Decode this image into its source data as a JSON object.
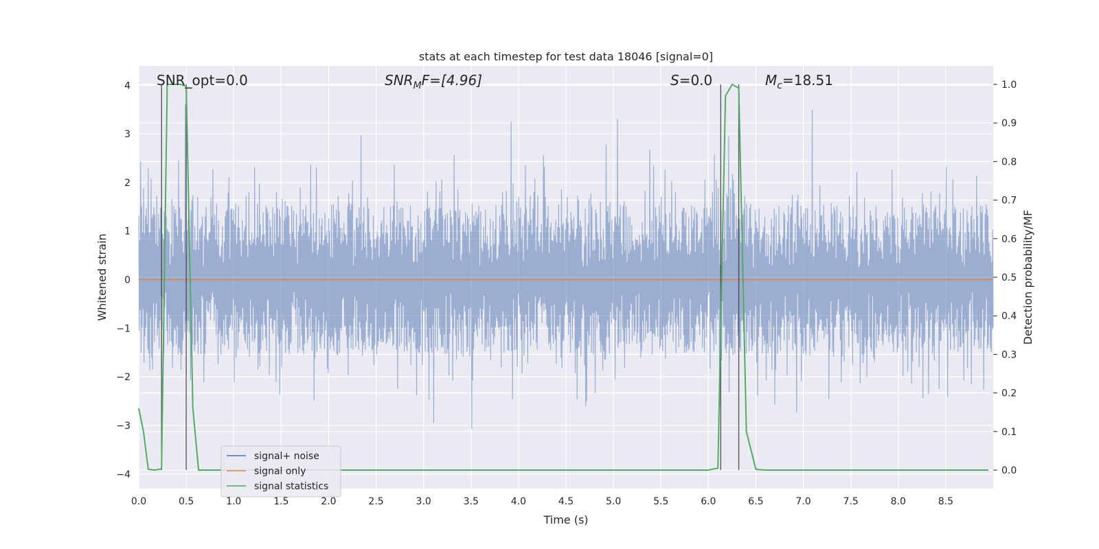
{
  "chart_data": {
    "type": "line",
    "title": "stats at each timestep for test data 18046 [signal=0]",
    "xlabel": "Time (s)",
    "ylabel": "Whitened strain",
    "ylabel_right": "Detection probability/MF",
    "xlim": [
      0.0,
      9.0
    ],
    "ylim": [
      -4.3,
      4.4
    ],
    "ylim_right": [
      -0.048,
      1.048
    ],
    "x_ticks": [
      "0.0",
      "0.5",
      "1.0",
      "1.5",
      "2.0",
      "2.5",
      "3.0",
      "3.5",
      "4.0",
      "4.5",
      "5.0",
      "5.5",
      "6.0",
      "6.5",
      "7.0",
      "7.5",
      "8.0",
      "8.5"
    ],
    "y_ticks": [
      "−4",
      "−3",
      "−2",
      "−1",
      "0",
      "1",
      "2",
      "3",
      "4"
    ],
    "y_ticks_right": [
      "0.0",
      "0.1",
      "0.2",
      "0.3",
      "0.4",
      "0.5",
      "0.6",
      "0.7",
      "0.8",
      "0.9",
      "1.0"
    ],
    "grid": true,
    "background": "#eaeaf2",
    "annotations": {
      "snr_opt": "SNR_opt=0.0",
      "snr_mf_name": "SNR",
      "snr_mf_sub": "M",
      "snr_mf_rest": "F=[4.96]",
      "s_name": "S",
      "s_rest": "=0.0",
      "mc_name": "M",
      "mc_sub": "c",
      "mc_rest": "=18.51"
    },
    "series": [
      {
        "name": "signal+ noise",
        "color": "#4c72b0",
        "opacity": 0.5,
        "t_range": [
          0.0,
          9.0
        ],
        "n_samples": 1800,
        "envelope_upper": 2.1,
        "envelope_lower": -2.1,
        "peak_max": 4.0,
        "peak_min": -3.9
      },
      {
        "name": "signal only",
        "color": "#dd8452",
        "x": [
          0.0,
          9.0
        ],
        "y": [
          0.0,
          0.0
        ]
      },
      {
        "name": "signal statistics",
        "color": "#55a868",
        "axis": "right",
        "x": [
          0.0,
          0.05,
          0.1,
          0.17,
          0.24,
          0.3,
          0.37,
          0.44,
          0.5,
          0.57,
          0.63,
          1.0,
          2.0,
          3.0,
          4.0,
          5.0,
          6.0,
          6.1,
          6.18,
          6.25,
          6.32,
          6.4,
          6.5,
          6.6,
          7.0,
          8.0,
          8.95
        ],
        "y": [
          0.16,
          0.1,
          0.002,
          0.0,
          0.003,
          1.0,
          1.0,
          1.0,
          0.995,
          0.16,
          0.0,
          0.0,
          0.0,
          0.0,
          0.0,
          0.0,
          0.0,
          0.005,
          0.97,
          1.0,
          0.99,
          0.1,
          0.002,
          0.0,
          0.0,
          0.0,
          0.0
        ]
      }
    ],
    "vlines": [
      {
        "x": 0.24,
        "ymax": 1.0
      },
      {
        "x": 0.5,
        "ymax": 1.0
      },
      {
        "x": 6.13,
        "ymax": 1.0
      },
      {
        "x": 6.32,
        "ymax": 1.0
      }
    ],
    "legend": {
      "placement": "lower-left",
      "entries": [
        {
          "label": "signal+ noise",
          "color": "#4c72b0"
        },
        {
          "label": "signal only",
          "color": "#dd8452"
        },
        {
          "label": "signal statistics",
          "color": "#55a868"
        }
      ]
    }
  }
}
